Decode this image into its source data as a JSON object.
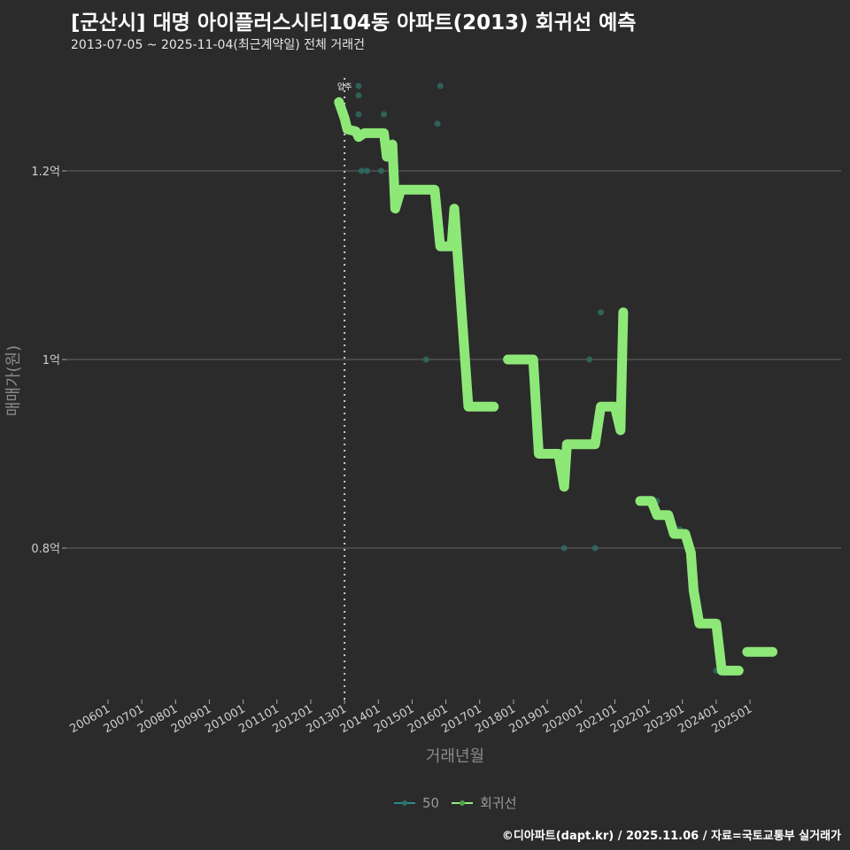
{
  "header": {
    "title": "[군산시] 대명 아이플러스시티104동 아파트(2013) 회귀선 예측",
    "subtitle": "2013-07-05 ~ 2025-11-04(최근계약일) 전체 거래건"
  },
  "footer": {
    "credit": "©디아파트(dapt.kr) / 2025.11.06 / 자료=국토교통부 실거래가"
  },
  "legend": {
    "items": [
      {
        "label": "50",
        "color": "#2a8a8a"
      },
      {
        "label": "회귀선",
        "color": "#90ee78"
      }
    ]
  },
  "colors": {
    "background": "#2b2b2b",
    "regression": "#8ee878",
    "scatter": "#2e6b62",
    "grid": "#555555"
  },
  "chart_data": {
    "type": "line",
    "title": "[군산시] 대명 아이플러스시티104동 아파트(2013) 회귀선 예측",
    "subtitle": "2013-07-05 ~ 2025-11-04(최근계약일) 전체 거래건",
    "xlabel": "거래년월",
    "ylabel": "매매가(원)",
    "x_ticks": [
      "200601",
      "200701",
      "200801",
      "200901",
      "201001",
      "201101",
      "201201",
      "201301",
      "201401",
      "201501",
      "201601",
      "201701",
      "201801",
      "201901",
      "202001",
      "202101",
      "202201",
      "202301",
      "202401",
      "202501"
    ],
    "y_ticks": [
      {
        "value": 0.8,
        "label": "0.8억"
      },
      {
        "value": 1.0,
        "label": "1억"
      },
      {
        "value": 1.2,
        "label": "1.2억"
      }
    ],
    "ylim": [
      0.64,
      1.31
    ],
    "grid": true,
    "legend_position": "bottom",
    "annotations": [
      {
        "x": "2013-01",
        "label": "입주",
        "style": "vertical dotted line"
      }
    ],
    "series": [
      {
        "name": "회귀선",
        "unit": "억",
        "segments": [
          [
            [
              "2012-11",
              1.273
            ],
            [
              "2013-01",
              1.256
            ],
            [
              "2013-02",
              1.244
            ],
            [
              "2013-05",
              1.242
            ],
            [
              "2013-06",
              1.236
            ],
            [
              "2013-08",
              1.24
            ],
            [
              "2014-03",
              1.24
            ],
            [
              "2014-04",
              1.215
            ],
            [
              "2014-06",
              1.228
            ],
            [
              "2014-07",
              1.16
            ],
            [
              "2014-09",
              1.18
            ],
            [
              "2015-09",
              1.18
            ],
            [
              "2015-11",
              1.12
            ],
            [
              "2016-03",
              1.12
            ],
            [
              "2016-04",
              1.16
            ],
            [
              "2016-09",
              0.95
            ],
            [
              "2017-06",
              0.95
            ]
          ],
          [
            [
              "2017-11",
              1.0
            ],
            [
              "2018-08",
              1.0
            ],
            [
              "2018-10",
              0.9
            ],
            [
              "2019-05",
              0.9
            ],
            [
              "2019-07",
              0.865
            ],
            [
              "2019-08",
              0.91
            ],
            [
              "2020-06",
              0.91
            ],
            [
              "2020-08",
              0.95
            ],
            [
              "2021-01",
              0.95
            ],
            [
              "2021-03",
              0.925
            ],
            [
              "2021-04",
              1.05
            ]
          ],
          [
            [
              "2021-10",
              0.85
            ],
            [
              "2022-02",
              0.85
            ],
            [
              "2022-04",
              0.835
            ],
            [
              "2022-08",
              0.835
            ],
            [
              "2022-10",
              0.815
            ],
            [
              "2023-02",
              0.815
            ],
            [
              "2023-04",
              0.795
            ],
            [
              "2023-05",
              0.755
            ],
            [
              "2023-07",
              0.72
            ],
            [
              "2024-01",
              0.72
            ],
            [
              "2024-03",
              0.67
            ],
            [
              "2024-09",
              0.67
            ]
          ],
          [
            [
              "2024-12",
              0.69
            ],
            [
              "2025-09",
              0.69
            ]
          ]
        ]
      },
      {
        "name": "50",
        "type": "scatter",
        "points": [
          [
            "2013-06",
            1.29
          ],
          [
            "2013-06",
            1.28
          ],
          [
            "2013-06",
            1.26
          ],
          [
            "2013-07",
            1.2
          ],
          [
            "2013-09",
            1.2
          ],
          [
            "2014-02",
            1.2
          ],
          [
            "2014-03",
            1.26
          ],
          [
            "2015-10",
            1.25
          ],
          [
            "2015-11",
            1.29
          ],
          [
            "2015-06",
            1.0
          ],
          [
            "2019-07",
            0.8
          ],
          [
            "2020-04",
            1.0
          ],
          [
            "2020-06",
            0.8
          ],
          [
            "2020-08",
            1.05
          ],
          [
            "2022-04",
            0.85
          ],
          [
            "2022-12",
            0.82
          ],
          [
            "2024-01",
            0.67
          ]
        ]
      }
    ]
  }
}
